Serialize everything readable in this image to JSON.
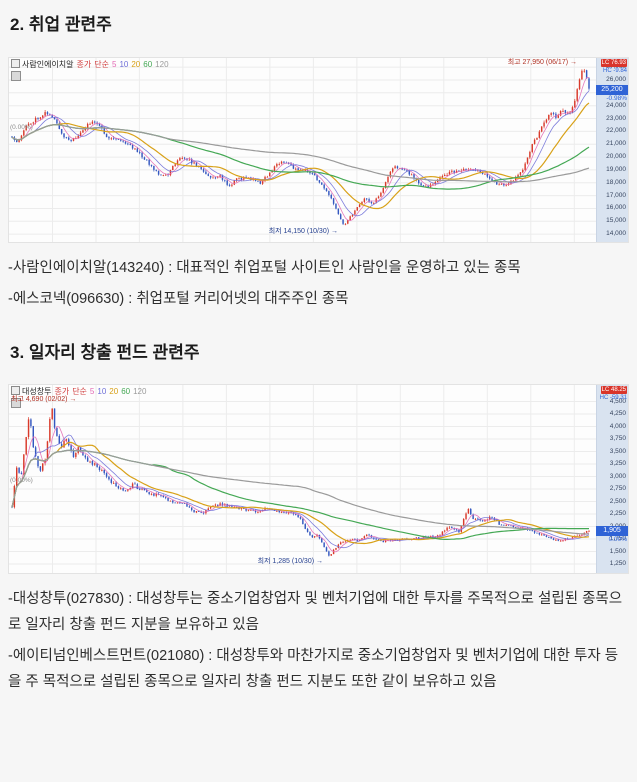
{
  "sections": [
    {
      "heading": "2. 취업 관련주",
      "paragraphs": [
        "-사람인에이치알(143240) : 대표적인 취업포털 사이트인 사람인을 운영하고 있는 종목",
        "-에스코넥(096630) : 취업포털 커리어넷의 대주주인 종목"
      ]
    },
    {
      "heading": "3. 일자리 창출 펀드 관련주",
      "paragraphs": [
        "-대성창투(027830) : 대성창투는 중소기업창업자 및 벤처기업에 대한 투자를 주목적으로 설립된 종목으로 일자리 창출 펀드 지분을 보유하고 있음",
        "-에이티넘인베스트먼트(021080) : 대성창투와 마찬가지로 중소기업창업자 및 벤처기업에 대한 투자 등을 주 목적으로 설립된 종목으로 일자리 창출 펀드 지분도 또한 같이 보유하고 있음"
      ]
    }
  ],
  "colors": {
    "up": "#d93a2b",
    "down": "#3457c0",
    "ma": [
      "#e36bb5",
      "#6f6fd8",
      "#d8a118",
      "#44a854",
      "#9a9a9a"
    ],
    "grid": "#ececec",
    "axis_bg": "#d9e3f0",
    "axis_text": "#37455f",
    "cur_box": "#2f63d6",
    "lc_bg": "#d9352b",
    "hc_text": "#2f63d6",
    "high_anno": "#b03023",
    "low_anno": "#27418f",
    "close_label_color": "#d03a3a",
    "name_color": "#222222"
  },
  "chart_data": [
    {
      "type": "candlestick",
      "title": "사람인에이치알",
      "legend": {
        "close_label": "종가",
        "ma_label": "단순",
        "periods": [
          5,
          10,
          20,
          60,
          120
        ]
      },
      "y_ticks": [
        "27,000",
        "26,000",
        "25,000",
        "24,000",
        "23,000",
        "22,000",
        "21,000",
        "20,000",
        "19,000",
        "18,000",
        "17,000",
        "16,000",
        "15,000",
        "14,000"
      ],
      "y_range": [
        13700,
        27400
      ],
      "x_range_days": 245,
      "high_annotation": {
        "label": "최고 27,950 (06/17)",
        "price": 27950,
        "t": 0.99
      },
      "low_annotation": {
        "label": "최저 14,150 (10/30)",
        "price": 14150,
        "t": 0.575
      },
      "ref_label": {
        "label": "(0.00%)",
        "price": 22250
      },
      "current": {
        "price_label": "25,200",
        "price": 25200,
        "pct_label": "-0.98%"
      },
      "corner": {
        "lc": "LC 76.93",
        "hc": "HC -9.84"
      },
      "seed": 11,
      "wiggle": 0.012,
      "anchors": [
        [
          0,
          21600
        ],
        [
          0.01,
          21200
        ],
        [
          0.025,
          22400
        ],
        [
          0.045,
          23100
        ],
        [
          0.06,
          23500
        ],
        [
          0.075,
          22800
        ],
        [
          0.09,
          21600
        ],
        [
          0.105,
          21300
        ],
        [
          0.12,
          21900
        ],
        [
          0.14,
          22900
        ],
        [
          0.15,
          22500
        ],
        [
          0.165,
          21600
        ],
        [
          0.19,
          21300
        ],
        [
          0.215,
          20600
        ],
        [
          0.235,
          19600
        ],
        [
          0.255,
          18700
        ],
        [
          0.27,
          18600
        ],
        [
          0.285,
          19700
        ],
        [
          0.3,
          20000
        ],
        [
          0.315,
          19500
        ],
        [
          0.33,
          19000
        ],
        [
          0.345,
          18300
        ],
        [
          0.36,
          18600
        ],
        [
          0.375,
          17700
        ],
        [
          0.39,
          18300
        ],
        [
          0.41,
          18400
        ],
        [
          0.43,
          18000
        ],
        [
          0.45,
          18900
        ],
        [
          0.465,
          19700
        ],
        [
          0.48,
          19500
        ],
        [
          0.495,
          18900
        ],
        [
          0.51,
          19000
        ],
        [
          0.525,
          18500
        ],
        [
          0.54,
          17600
        ],
        [
          0.555,
          16600
        ],
        [
          0.565,
          15700
        ],
        [
          0.575,
          14700
        ],
        [
          0.585,
          15300
        ],
        [
          0.595,
          15900
        ],
        [
          0.61,
          16800
        ],
        [
          0.625,
          16400
        ],
        [
          0.64,
          17200
        ],
        [
          0.655,
          18800
        ],
        [
          0.665,
          19300
        ],
        [
          0.675,
          19100
        ],
        [
          0.69,
          18700
        ],
        [
          0.705,
          18000
        ],
        [
          0.72,
          17600
        ],
        [
          0.735,
          18100
        ],
        [
          0.75,
          18700
        ],
        [
          0.77,
          18900
        ],
        [
          0.79,
          19000
        ],
        [
          0.81,
          18900
        ],
        [
          0.825,
          18500
        ],
        [
          0.84,
          17900
        ],
        [
          0.855,
          17900
        ],
        [
          0.87,
          18200
        ],
        [
          0.885,
          19000
        ],
        [
          0.9,
          20800
        ],
        [
          0.915,
          22000
        ],
        [
          0.925,
          22900
        ],
        [
          0.935,
          23400
        ],
        [
          0.945,
          23100
        ],
        [
          0.955,
          23700
        ],
        [
          0.965,
          23400
        ],
        [
          0.975,
          24300
        ],
        [
          0.985,
          26200
        ],
        [
          0.99,
          27200
        ],
        [
          1,
          25200
        ]
      ]
    },
    {
      "type": "candlestick",
      "title": "대성창투",
      "legend": {
        "close_label": "종가",
        "ma_label": "단순",
        "periods": [
          5,
          10,
          20,
          60,
          120
        ]
      },
      "y_ticks": [
        "4,500",
        "4,250",
        "4,000",
        "3,750",
        "3,500",
        "3,250",
        "3,000",
        "2,750",
        "2,500",
        "2,250",
        "2,000",
        "1,750",
        "1,500",
        "1,250"
      ],
      "y_range": [
        1150,
        4750
      ],
      "x_range_days": 245,
      "high_annotation": {
        "label": "최고 4,690 (02/02)",
        "price": 4690,
        "t": 0.068
      },
      "low_annotation": {
        "label": "최저 1,285 (10/30)",
        "price": 1285,
        "t": 0.55
      },
      "ref_label": {
        "label": "(0.00%)",
        "price": 2900
      },
      "current": {
        "price_label": "1,905",
        "price": 1905,
        "pct_label": "0.00%"
      },
      "corner": {
        "lc": "LC 48.25",
        "hc": "HC -59.31"
      },
      "seed": 23,
      "wiggle": 0.022,
      "anchors": [
        [
          0,
          2400
        ],
        [
          0.008,
          3200
        ],
        [
          0.015,
          2950
        ],
        [
          0.022,
          3600
        ],
        [
          0.03,
          4250
        ],
        [
          0.038,
          3500
        ],
        [
          0.048,
          3100
        ],
        [
          0.058,
          3350
        ],
        [
          0.068,
          4450
        ],
        [
          0.075,
          3900
        ],
        [
          0.085,
          3600
        ],
        [
          0.095,
          3750
        ],
        [
          0.105,
          3400
        ],
        [
          0.115,
          3550
        ],
        [
          0.13,
          3300
        ],
        [
          0.145,
          3250
        ],
        [
          0.16,
          3050
        ],
        [
          0.18,
          2800
        ],
        [
          0.195,
          2700
        ],
        [
          0.21,
          2850
        ],
        [
          0.22,
          2750
        ],
        [
          0.24,
          2650
        ],
        [
          0.26,
          2600
        ],
        [
          0.275,
          2500
        ],
        [
          0.29,
          2500
        ],
        [
          0.3,
          2450
        ],
        [
          0.315,
          2300
        ],
        [
          0.33,
          2250
        ],
        [
          0.345,
          2400
        ],
        [
          0.36,
          2450
        ],
        [
          0.38,
          2400
        ],
        [
          0.4,
          2350
        ],
        [
          0.42,
          2300
        ],
        [
          0.44,
          2350
        ],
        [
          0.46,
          2320
        ],
        [
          0.475,
          2280
        ],
        [
          0.49,
          2250
        ],
        [
          0.5,
          2150
        ],
        [
          0.51,
          1900
        ],
        [
          0.52,
          1800
        ],
        [
          0.53,
          1850
        ],
        [
          0.54,
          1600
        ],
        [
          0.55,
          1400
        ],
        [
          0.558,
          1550
        ],
        [
          0.57,
          1680
        ],
        [
          0.585,
          1750
        ],
        [
          0.6,
          1720
        ],
        [
          0.615,
          1850
        ],
        [
          0.625,
          1750
        ],
        [
          0.64,
          1700
        ],
        [
          0.66,
          1720
        ],
        [
          0.68,
          1750
        ],
        [
          0.7,
          1770
        ],
        [
          0.72,
          1790
        ],
        [
          0.74,
          1810
        ],
        [
          0.755,
          2000
        ],
        [
          0.765,
          1950
        ],
        [
          0.775,
          1900
        ],
        [
          0.79,
          2350
        ],
        [
          0.8,
          2150
        ],
        [
          0.815,
          2100
        ],
        [
          0.83,
          2200
        ],
        [
          0.845,
          2050
        ],
        [
          0.86,
          2020
        ],
        [
          0.875,
          1980
        ],
        [
          0.89,
          1950
        ],
        [
          0.905,
          1900
        ],
        [
          0.92,
          1820
        ],
        [
          0.935,
          1760
        ],
        [
          0.95,
          1720
        ],
        [
          0.965,
          1760
        ],
        [
          0.98,
          1820
        ],
        [
          1,
          1905
        ]
      ]
    }
  ]
}
